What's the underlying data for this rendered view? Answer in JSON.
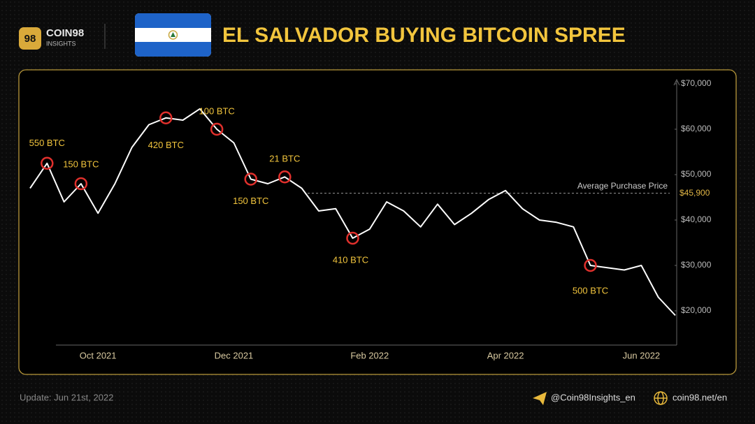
{
  "header": {
    "logo": "98",
    "brand": "COIN98",
    "brand_sub": "INSIGHTS"
  },
  "chart_data": {
    "type": "line",
    "title": "EL SALVADOR BUYING BITCOIN SPREE",
    "categories": [
      null,
      null,
      null,
      null,
      "Oct 2021",
      null,
      null,
      null,
      null,
      null,
      null,
      null,
      "Dec 2021",
      null,
      null,
      null,
      null,
      null,
      null,
      null,
      "Feb 2022",
      null,
      null,
      null,
      null,
      null,
      null,
      null,
      "Apr 2022",
      null,
      null,
      null,
      null,
      null,
      null,
      null,
      "Jun 2022",
      null,
      null
    ],
    "values": [
      47000,
      52500,
      44000,
      48000,
      41500,
      48000,
      56000,
      61000,
      62500,
      62000,
      64500,
      60000,
      57000,
      49000,
      48000,
      49500,
      47000,
      42000,
      42500,
      36000,
      38000,
      44000,
      42000,
      38500,
      43500,
      39000,
      41500,
      44500,
      46500,
      42500,
      40000,
      39500,
      38500,
      30000,
      29500,
      29000,
      30000,
      23000,
      19000
    ],
    "purchase_labels": [
      null,
      "550 BTC",
      null,
      "150 BTC",
      null,
      null,
      null,
      null,
      "420 BTC",
      null,
      null,
      "100 BTC",
      null,
      "150 BTC",
      null,
      "21 BTC",
      null,
      null,
      null,
      "410 BTC",
      null,
      null,
      null,
      null,
      null,
      null,
      null,
      null,
      null,
      null,
      null,
      null,
      null,
      "500 BTC",
      null,
      null,
      null,
      null,
      null
    ],
    "color": "#ffffff",
    "marker_color": "#e0302c",
    "average_price": {
      "label": "Average Purchase Price",
      "value": 45900,
      "value_label": "$45,900"
    },
    "ylim": [
      12500,
      73000
    ],
    "yticks": [
      {
        "value": 20000,
        "label": "$20,000"
      },
      {
        "value": 30000,
        "label": "$30,000"
      },
      {
        "value": 40000,
        "label": "$40,000"
      },
      {
        "value": 50000,
        "label": "$50,000"
      },
      {
        "value": 60000,
        "label": "$60,000"
      },
      {
        "value": 70000,
        "label": "$70,000"
      }
    ],
    "grid": false
  },
  "footer": {
    "update": "Update: Jun 21st, 2022",
    "social": "@Coin98Insights_en",
    "website": "coin98.net/en"
  }
}
